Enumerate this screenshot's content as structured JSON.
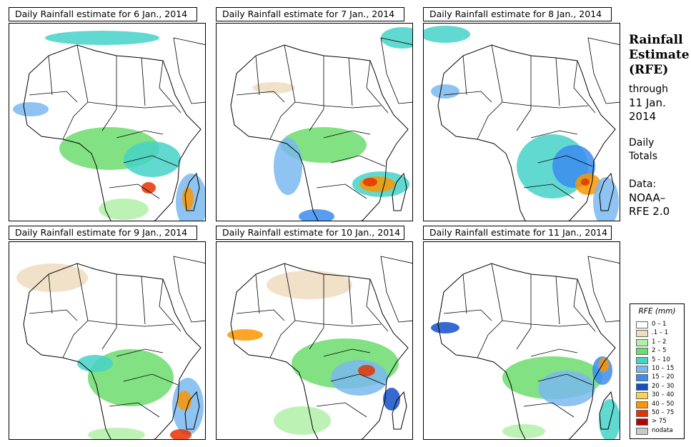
{
  "panels": [
    {
      "id": "p1",
      "title": "Daily Rainfall estimate for  6 Jan., 2014",
      "rain": [
        {
          "cx": 140,
          "cy": 175,
          "rx": 70,
          "ry": 30,
          "cls": "2–5"
        },
        {
          "cx": 200,
          "cy": 190,
          "rx": 40,
          "ry": 25,
          "cls": "5–10"
        },
        {
          "cx": 255,
          "cy": 250,
          "rx": 22,
          "ry": 40,
          "cls": "10–15"
        },
        {
          "cx": 250,
          "cy": 245,
          "rx": 8,
          "ry": 16,
          "cls": "40–50"
        },
        {
          "cx": 160,
          "cy": 260,
          "rx": 35,
          "ry": 15,
          "cls": "1–2"
        },
        {
          "cx": 130,
          "cy": 20,
          "rx": 80,
          "ry": 10,
          "cls": "5–10"
        },
        {
          "cx": 30,
          "cy": 120,
          "rx": 25,
          "ry": 10,
          "cls": "10–15"
        },
        {
          "cx": 195,
          "cy": 230,
          "rx": 10,
          "ry": 8,
          "cls": "50–75"
        }
      ]
    },
    {
      "id": "p2",
      "title": "Daily Rainfall estimate for  7 Jan., 2014",
      "rain": [
        {
          "cx": 150,
          "cy": 170,
          "rx": 60,
          "ry": 25,
          "cls": "2–5"
        },
        {
          "cx": 230,
          "cy": 225,
          "rx": 40,
          "ry": 18,
          "cls": "5–10"
        },
        {
          "cx": 225,
          "cy": 225,
          "rx": 25,
          "ry": 11,
          "cls": "40–50"
        },
        {
          "cx": 215,
          "cy": 222,
          "rx": 10,
          "ry": 6,
          "cls": "50–75"
        },
        {
          "cx": 100,
          "cy": 200,
          "rx": 20,
          "ry": 40,
          "cls": "10–15"
        },
        {
          "cx": 140,
          "cy": 270,
          "rx": 25,
          "ry": 10,
          "cls": "15–20"
        },
        {
          "cx": 260,
          "cy": 20,
          "rx": 30,
          "ry": 15,
          "cls": "5–10"
        },
        {
          "cx": 80,
          "cy": 90,
          "rx": 30,
          "ry": 8,
          "cls": ".1–1"
        }
      ]
    },
    {
      "id": "p3",
      "title": "Daily Rainfall estimate for  8 Jan., 2014",
      "rain": [
        {
          "cx": 180,
          "cy": 200,
          "rx": 50,
          "ry": 45,
          "cls": "5–10"
        },
        {
          "cx": 210,
          "cy": 200,
          "rx": 30,
          "ry": 30,
          "cls": "15–20"
        },
        {
          "cx": 230,
          "cy": 225,
          "rx": 18,
          "ry": 15,
          "cls": "40–50"
        },
        {
          "cx": 226,
          "cy": 222,
          "rx": 6,
          "ry": 5,
          "cls": "50–75"
        },
        {
          "cx": 255,
          "cy": 250,
          "rx": 18,
          "ry": 35,
          "cls": "10–15"
        },
        {
          "cx": 30,
          "cy": 15,
          "rx": 35,
          "ry": 12,
          "cls": "5–10"
        },
        {
          "cx": 30,
          "cy": 95,
          "rx": 20,
          "ry": 10,
          "cls": "10–15"
        }
      ]
    },
    {
      "id": "p4",
      "title": "Daily Rainfall estimate for  9 Jan., 2014",
      "rain": [
        {
          "cx": 170,
          "cy": 190,
          "rx": 60,
          "ry": 40,
          "cls": "2–5"
        },
        {
          "cx": 250,
          "cy": 230,
          "rx": 22,
          "ry": 40,
          "cls": "10–15"
        },
        {
          "cx": 245,
          "cy": 222,
          "rx": 10,
          "ry": 14,
          "cls": "40–50"
        },
        {
          "cx": 120,
          "cy": 170,
          "rx": 25,
          "ry": 12,
          "cls": "5–10"
        },
        {
          "cx": 60,
          "cy": 50,
          "rx": 50,
          "ry": 20,
          "cls": ".1–1"
        },
        {
          "cx": 150,
          "cy": 270,
          "rx": 40,
          "ry": 10,
          "cls": "1–2"
        },
        {
          "cx": 240,
          "cy": 270,
          "rx": 15,
          "ry": 8,
          "cls": "50–75"
        }
      ]
    },
    {
      "id": "p5",
      "title": "Daily Rainfall estimate for  10 Jan., 2014",
      "rain": [
        {
          "cx": 180,
          "cy": 170,
          "rx": 75,
          "ry": 35,
          "cls": "2–5"
        },
        {
          "cx": 200,
          "cy": 190,
          "rx": 40,
          "ry": 25,
          "cls": "10–15"
        },
        {
          "cx": 210,
          "cy": 180,
          "rx": 12,
          "ry": 8,
          "cls": "50–75"
        },
        {
          "cx": 245,
          "cy": 220,
          "rx": 12,
          "ry": 16,
          "cls": "20–30"
        },
        {
          "cx": 40,
          "cy": 130,
          "rx": 25,
          "ry": 8,
          "cls": "40–50"
        },
        {
          "cx": 120,
          "cy": 250,
          "rx": 40,
          "ry": 20,
          "cls": "1–2"
        },
        {
          "cx": 130,
          "cy": 60,
          "rx": 60,
          "ry": 20,
          "cls": ".1–1"
        }
      ]
    },
    {
      "id": "p6",
      "title": "Daily Rainfall estimate for  11 Jan., 2014",
      "rain": [
        {
          "cx": 180,
          "cy": 190,
          "rx": 70,
          "ry": 30,
          "cls": "2–5"
        },
        {
          "cx": 200,
          "cy": 205,
          "rx": 40,
          "ry": 25,
          "cls": "10–15"
        },
        {
          "cx": 250,
          "cy": 180,
          "rx": 14,
          "ry": 20,
          "cls": "15–20"
        },
        {
          "cx": 252,
          "cy": 172,
          "rx": 7,
          "ry": 10,
          "cls": "40–50"
        },
        {
          "cx": 30,
          "cy": 120,
          "rx": 20,
          "ry": 8,
          "cls": "20–30"
        },
        {
          "cx": 260,
          "cy": 250,
          "rx": 15,
          "ry": 30,
          "cls": "5–10"
        },
        {
          "cx": 140,
          "cy": 265,
          "rx": 30,
          "ry": 10,
          "cls": "1–2"
        }
      ]
    }
  ],
  "side": {
    "title_line1": "Rainfall",
    "title_line2": "Estimate",
    "title_line3": "(RFE)",
    "through_label": "through",
    "through_date_line1": "11 Jan.",
    "through_date_line2": "2014",
    "totals_line1": "Daily",
    "totals_line2": "Totals",
    "data_line1": "Data:",
    "data_line2": "NOAA–",
    "data_line3": "RFE 2.0"
  },
  "legend": {
    "title": "RFE (mm)",
    "classes": [
      {
        "label": "0 – 1",
        "color": "#ffffff"
      },
      {
        "label": ".1 – 1",
        "color": "#f0dcc0"
      },
      {
        "label": "1 – 2",
        "color": "#b2f0a8"
      },
      {
        "label": "2 – 5",
        "color": "#6cdc6c"
      },
      {
        "label": "5 – 10",
        "color": "#46d2c8"
      },
      {
        "label": "10 – 15",
        "color": "#7ab8f0"
      },
      {
        "label": "15 – 20",
        "color": "#3c8cf0"
      },
      {
        "label": "20 – 30",
        "color": "#1450c8"
      },
      {
        "label": "30 – 40",
        "color": "#fad250"
      },
      {
        "label": "40 – 50",
        "color": "#fa9600"
      },
      {
        "label": "50 – 75",
        "color": "#e63200"
      },
      {
        "label": "> 75",
        "color": "#b40000"
      },
      {
        "label": "nodata",
        "color": "#c8c8c8"
      }
    ]
  }
}
